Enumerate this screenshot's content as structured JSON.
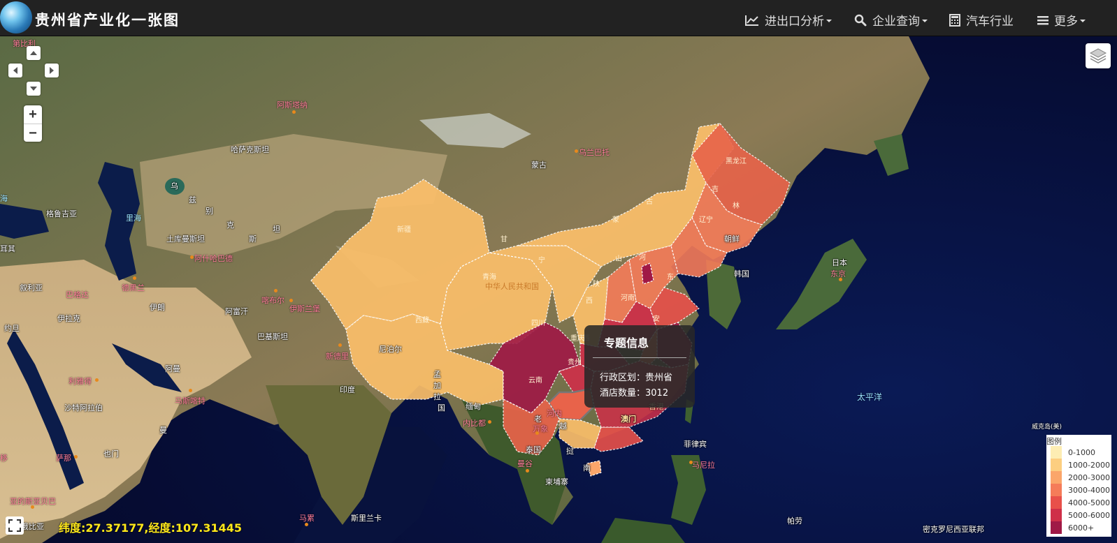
{
  "header": {
    "title": "贵州省产业化一张图",
    "nav": [
      {
        "label": "进出口分析",
        "icon": "line-chart-icon",
        "dropdown": true
      },
      {
        "label": "企业查询",
        "icon": "search-icon",
        "dropdown": true
      },
      {
        "label": "汽车行业",
        "icon": "calculator-icon",
        "dropdown": false
      },
      {
        "label": "更多",
        "icon": "menu-icon",
        "dropdown": true
      }
    ]
  },
  "map": {
    "coordinates": "纬度:27.37177,经度:107.31445",
    "tooltip": {
      "title": "专题信息",
      "region_label": "行政区划：贵州省",
      "value_label": "酒店数量：3012"
    },
    "legend": {
      "title": "图例",
      "items": [
        {
          "label": "0-1000",
          "color": "#fdedb3"
        },
        {
          "label": "1000-2000",
          "color": "#fcce80"
        },
        {
          "label": "2000-3000",
          "color": "#fba66a"
        },
        {
          "label": "3000-4000",
          "color": "#f57c59"
        },
        {
          "label": "4000-5000",
          "color": "#e8504a"
        },
        {
          "label": "5000-6000",
          "color": "#cf2f49"
        },
        {
          "label": "6000+",
          "color": "#a01946"
        }
      ]
    },
    "place_labels": {
      "w1": "格鲁吉亚",
      "w2": "哈萨克斯坦",
      "w3": "蒙古",
      "w4": "土库曼斯坦",
      "w5": "伊朗",
      "w6": "阿富汗",
      "w7": "巴基斯坦",
      "w8": "伊拉克",
      "w9": "叙利亚",
      "w10": "约旦",
      "w11": "沙特阿拉伯",
      "w12": "阿曼",
      "w13": "也门",
      "w14": "印度",
      "w15": "尼泊尔",
      "w16": "缅甸",
      "w17": "泰国",
      "w18": "柬埔寨",
      "w19": "菲律宾",
      "w20": "朝鲜",
      "w21": "韩国",
      "w22": "日本",
      "w23": "帕劳",
      "w24": "斯里兰卡",
      "w25": "埃塞俄比亚",
      "w26": "中华人民共和国",
      "w27": "香港",
      "w28": "澳门",
      "w29": "耳其",
      "w30": "乌",
      "w31": "兹",
      "w32": "别",
      "w33": "克",
      "w34": "斯",
      "w35": "坦",
      "w36": "孟",
      "w37": "加",
      "w38": "拉",
      "w39": "国",
      "w40": "老",
      "w41": "挝",
      "w42": "越",
      "w43": "南",
      "w44": "曼",
      "w45": "威克岛(美)",
      "w46": "密克罗尼西亚联邦",
      "p1": "阿斯塔纳",
      "p2": "乌兰巴托",
      "p3": "阿什哈巴德",
      "p4": "德黑兰",
      "p5": "巴格达",
      "p6": "喀布尔",
      "p7": "伊斯兰堡",
      "p8": "新德里",
      "p9": "利雅得",
      "p10": "马斯喀特",
      "p11": "萨那",
      "p12": "内比都",
      "p13": "河内",
      "p14": "万象",
      "p15": "曼谷",
      "p16": "马尼拉",
      "p17": "东京",
      "p18": "马累",
      "p19": "亚的斯亚贝巴",
      "p20": "第比利",
      "p21": "移",
      "b1": "里海",
      "b2": "太平洋",
      "b3": "海",
      "pr1": "新疆",
      "pr2": "西藏",
      "pr3": "青海",
      "pr4": "甘",
      "pr5": "四川",
      "pr6": "云南",
      "pr7": "黑龙江",
      "pr8": "吉",
      "pr9": "林",
      "pr10": "辽宁",
      "pr11": "河南",
      "pr12": "山",
      "pr13": "东",
      "pr14": "陕",
      "pr15": "西",
      "pr16": "贵州",
      "pr17": "重庆",
      "pr18": "古",
      "pr19": "蒙",
      "pr20": "河",
      "pr21": "安",
      "pr22": "宁",
      "pr23": "西"
    }
  }
}
